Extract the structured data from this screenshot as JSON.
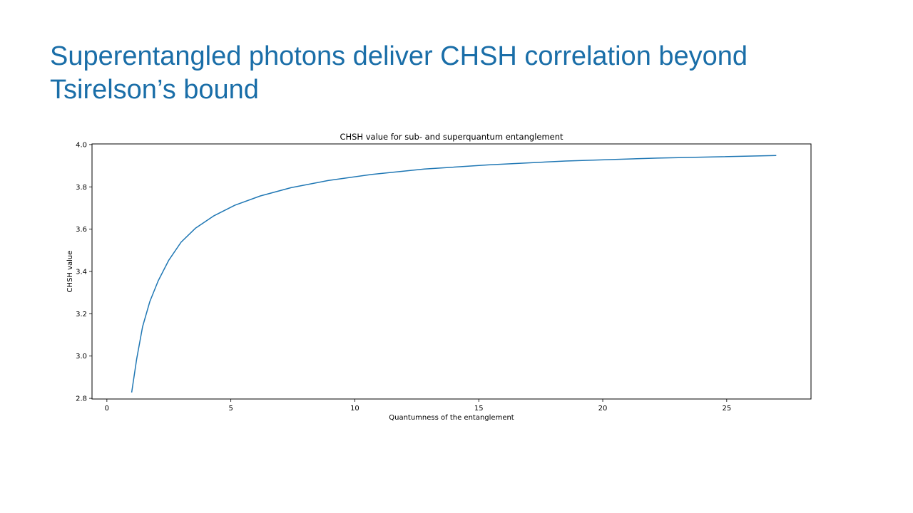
{
  "slide": {
    "title": "Superentangled photons deliver CHSH correlation beyond Tsirelson’s bound",
    "title_color": "#1a6ea8"
  },
  "chart_data": {
    "type": "line",
    "title": "CHSH value for sub- and superquantum entanglement",
    "xlabel": "Quantumness of the entanglement",
    "ylabel": "CHSH value",
    "xlim": [
      -0.6,
      28.4
    ],
    "ylim": [
      2.797,
      4.003
    ],
    "xticks": [
      0,
      5,
      10,
      15,
      20,
      25
    ],
    "xtick_labels": [
      "0",
      "5",
      "10",
      "15",
      "20",
      "25"
    ],
    "yticks": [
      2.8,
      3.0,
      3.2,
      3.4,
      3.6,
      3.8,
      4.0
    ],
    "ytick_labels": [
      "2.8",
      "3.0",
      "3.2",
      "3.4",
      "3.6",
      "3.8",
      "4.0"
    ],
    "grid": false,
    "line_color": "#1f77b4",
    "series": [
      {
        "x": [
          1.0,
          1.2,
          1.44,
          1.73,
          2.07,
          2.49,
          2.99,
          3.58,
          4.3,
          5.16,
          6.19,
          7.43,
          8.92,
          10.7,
          12.8,
          15.4,
          18.5,
          22.2,
          27.0
        ],
        "y": [
          2.828,
          2.986,
          3.139,
          3.257,
          3.356,
          3.452,
          3.538,
          3.605,
          3.662,
          3.713,
          3.757,
          3.796,
          3.83,
          3.859,
          3.884,
          3.904,
          3.922,
          3.936,
          3.948
        ]
      }
    ]
  }
}
